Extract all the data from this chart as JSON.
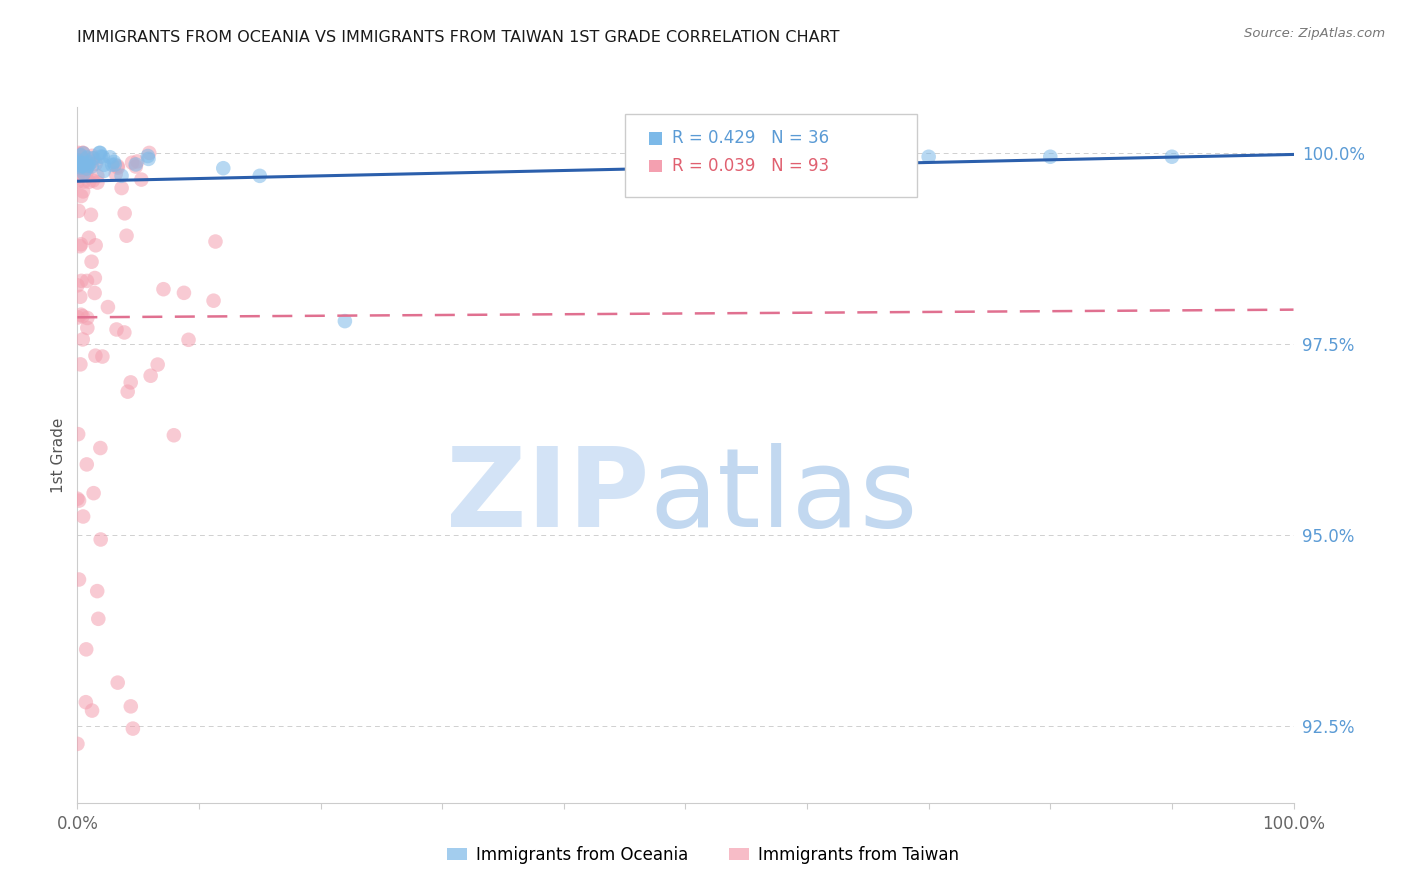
{
  "title": "IMMIGRANTS FROM OCEANIA VS IMMIGRANTS FROM TAIWAN 1ST GRADE CORRELATION CHART",
  "source": "Source: ZipAtlas.com",
  "ylabel": "1st Grade",
  "legend_oceania_r": "R = 0.429",
  "legend_oceania_n": "N = 36",
  "legend_taiwan_r": "R = 0.039",
  "legend_taiwan_n": "N = 93",
  "legend_label_oceania": "Immigrants from Oceania",
  "legend_label_taiwan": "Immigrants from Taiwan",
  "R_oceania": 0.429,
  "N_oceania": 36,
  "R_taiwan": 0.039,
  "N_taiwan": 93,
  "xmin": 0.0,
  "xmax": 1.0,
  "ymin": 0.915,
  "ymax": 1.006,
  "yticks": [
    1.0,
    0.975,
    0.95,
    0.925
  ],
  "ytick_labels": [
    "100.0%",
    "97.5%",
    "95.0%",
    "92.5%"
  ],
  "color_oceania": "#7cb9e8",
  "color_taiwan": "#f4a0b0",
  "color_trendline_oceania": "#2b5fac",
  "color_trendline_taiwan": "#e07090",
  "background": "#ffffff",
  "title_color": "#1a1a1a",
  "right_tick_color": "#5b9bd5",
  "grid_color": "#d0d0d0",
  "watermark_zip_color": "#ccdff5",
  "watermark_atlas_color": "#a8c8ea"
}
